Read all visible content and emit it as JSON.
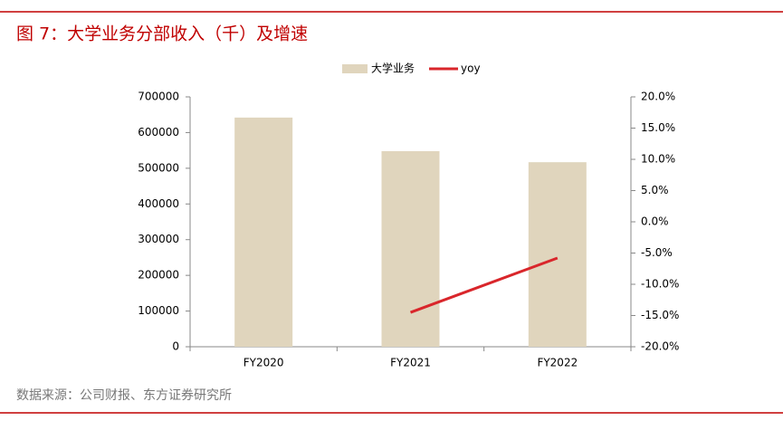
{
  "chart_data": {
    "type": "bar",
    "title": "图 7：大学业务分部收入（千）及增速",
    "categories": [
      "FY2020",
      "FY2021",
      "FY2022"
    ],
    "series": [
      {
        "name": "大学业务",
        "color": "#e0d5bd",
        "type": "bar",
        "values": [
          642000,
          548000,
          517000
        ]
      },
      {
        "name": "yoy",
        "color": "#d9262b",
        "type": "line",
        "axis": "y2",
        "values": [
          null,
          -14.5,
          -5.8
        ]
      }
    ],
    "ylim": [
      0,
      700000
    ],
    "yticks": [
      0,
      100000,
      200000,
      300000,
      400000,
      500000,
      600000,
      700000
    ],
    "y2lim": [
      -20,
      20
    ],
    "y2ticks": [
      {
        "value": -20,
        "label": "-20.0%"
      },
      {
        "value": -15,
        "label": "-15.0%"
      },
      {
        "value": -10,
        "label": "-10.0%"
      },
      {
        "value": -5,
        "label": "-5.0%"
      },
      {
        "value": 0,
        "label": "0.0%"
      },
      {
        "value": 5,
        "label": "5.0%"
      },
      {
        "value": 10,
        "label": "10.0%"
      },
      {
        "value": 15,
        "label": "15.0%"
      },
      {
        "value": 20,
        "label": "20.0%"
      }
    ],
    "grid": false,
    "source": "数据来源：公司财报、东方证券研究所"
  }
}
